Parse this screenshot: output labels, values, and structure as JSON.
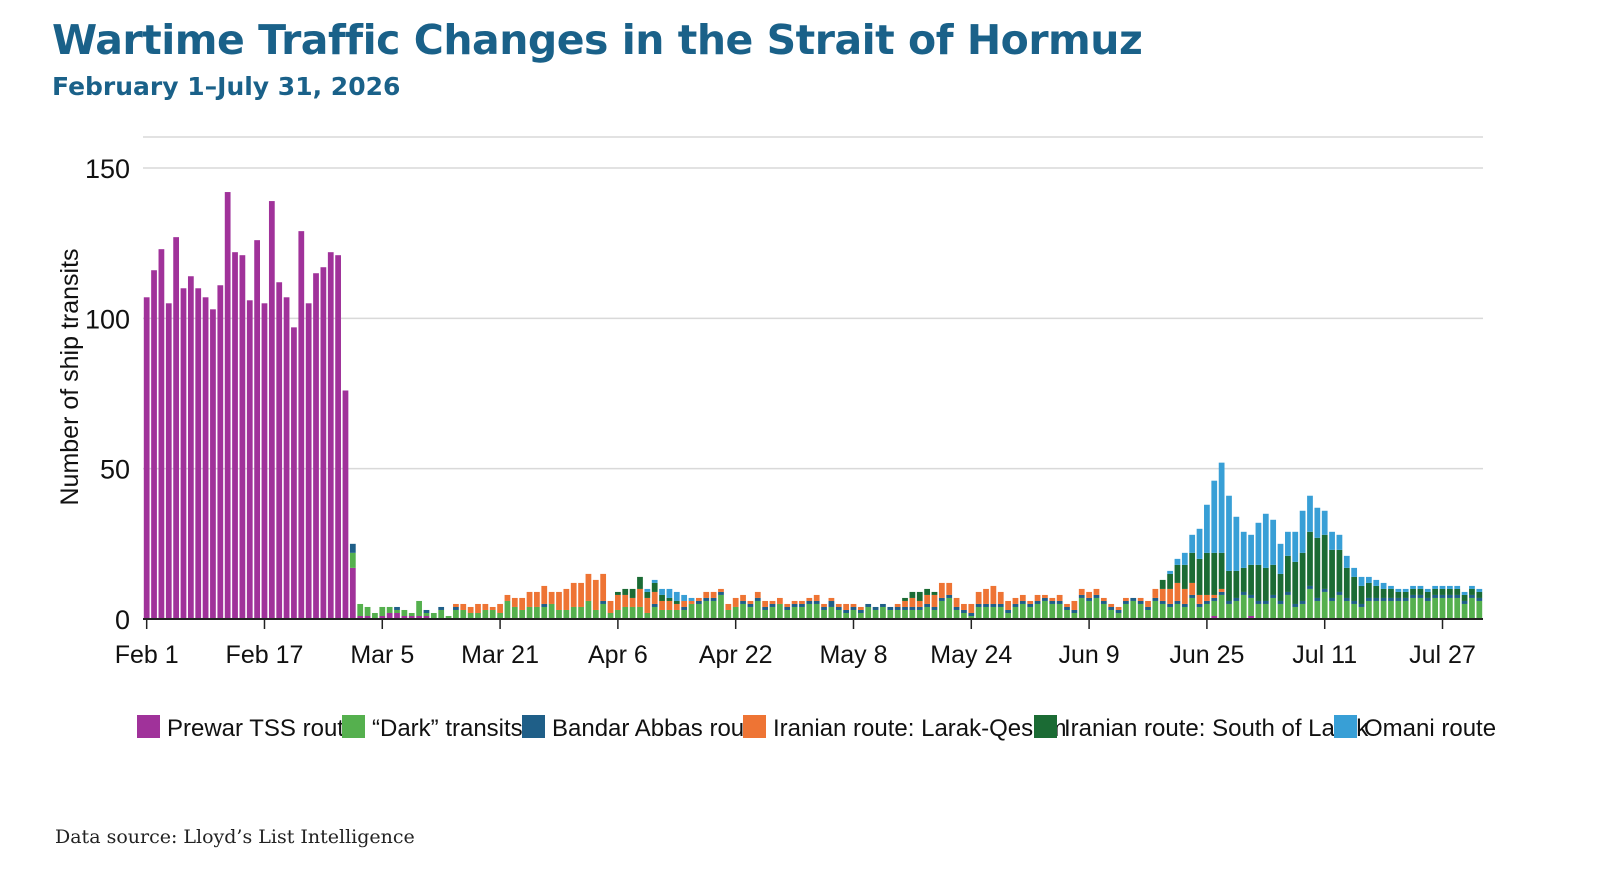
{
  "title": "Wartime Traffic Changes in the Strait of Hormuz",
  "subtitle": "February 1–July 31, 2026",
  "source": "Data source: Lloyd’s List Intelligence",
  "chart_data": {
    "type": "bar",
    "stacked": true,
    "ylabel": "Number of ship transits",
    "xlabel": "",
    "ylim": [
      0,
      150
    ],
    "yticks": [
      0,
      50,
      100,
      150
    ],
    "grid": true,
    "legend_position": "bottom",
    "start_date": "2026-02-01",
    "xtick_labels": [
      "Feb 1",
      "Feb 17",
      "Mar 5",
      "Mar 21",
      "Apr 6",
      "Apr 22",
      "May 8",
      "May 24",
      "Jun 9",
      "Jun 25",
      "Jul 11",
      "Jul 27"
    ],
    "series": [
      {
        "name": "Prewar TSS route",
        "color": "#a0329a",
        "values": [
          107,
          116,
          123,
          105,
          127,
          110,
          114,
          110,
          107,
          103,
          111,
          142,
          122,
          121,
          106,
          126,
          105,
          139,
          112,
          107,
          97,
          129,
          105,
          115,
          117,
          122,
          121,
          76,
          17,
          1,
          1,
          0,
          1,
          2,
          2,
          1,
          1,
          1,
          1,
          0,
          0,
          0,
          0,
          0,
          0,
          0,
          0,
          0,
          0,
          0,
          0,
          0,
          0,
          0,
          0,
          0,
          0,
          0,
          0,
          0,
          0,
          0,
          0,
          0,
          0,
          0,
          0,
          0,
          0,
          0,
          0,
          0,
          0,
          0,
          0,
          0,
          0,
          0,
          0,
          0,
          0,
          0,
          0,
          0,
          0,
          0,
          0,
          0,
          0,
          0,
          0,
          0,
          0,
          0,
          0,
          0,
          0,
          0,
          0,
          0,
          0,
          0,
          0,
          0,
          0,
          0,
          0,
          0,
          0,
          0,
          0,
          0,
          0,
          0,
          0,
          0,
          0,
          0,
          0,
          0,
          0,
          0,
          0,
          0,
          0,
          0,
          0,
          0,
          0,
          0,
          0,
          0,
          0,
          0,
          0,
          0,
          0,
          0,
          0,
          0,
          0,
          0,
          0,
          0,
          0,
          1,
          0,
          0,
          0,
          0,
          1,
          0,
          0,
          0,
          0,
          0,
          0,
          0,
          0,
          0,
          0,
          0,
          0,
          0,
          0,
          0,
          0,
          0,
          0,
          0,
          0,
          0,
          0,
          0,
          0,
          0,
          0,
          0,
          0,
          0,
          0,
          0
        ]
      },
      {
        "name": "“Dark” transits",
        "color": "#55b04e",
        "values": [
          0,
          0,
          0,
          0,
          0,
          0,
          0,
          0,
          0,
          0,
          0,
          0,
          0,
          0,
          0,
          0,
          0,
          0,
          0,
          0,
          0,
          0,
          0,
          0,
          0,
          0,
          0,
          0,
          5,
          4,
          3,
          2,
          3,
          2,
          1,
          2,
          1,
          5,
          1,
          2,
          3,
          1,
          3,
          3,
          2,
          2,
          3,
          3,
          2,
          6,
          4,
          3,
          4,
          4,
          4,
          5,
          3,
          3,
          4,
          4,
          6,
          3,
          5,
          2,
          3,
          4,
          4,
          4,
          2,
          4,
          3,
          3,
          3,
          3,
          5,
          5,
          6,
          6,
          8,
          3,
          4,
          5,
          4,
          6,
          3,
          4,
          5,
          3,
          4,
          4,
          5,
          5,
          3,
          4,
          3,
          2,
          3,
          2,
          4,
          3,
          4,
          3,
          3,
          3,
          3,
          3,
          4,
          3,
          6,
          7,
          3,
          2,
          1,
          4,
          4,
          4,
          4,
          2,
          4,
          5,
          4,
          5,
          6,
          5,
          5,
          3,
          2,
          7,
          6,
          7,
          5,
          3,
          2,
          5,
          6,
          5,
          3,
          6,
          5,
          4,
          5,
          4,
          7,
          4,
          5,
          5,
          8,
          5,
          6,
          8,
          6,
          5,
          5,
          7,
          5,
          8,
          4,
          5,
          10,
          6,
          9,
          6,
          8,
          6,
          5,
          4,
          6,
          6,
          6,
          6,
          6,
          6,
          7,
          7,
          6,
          7,
          7,
          7,
          7,
          5,
          7,
          6
        ]
      },
      {
        "name": "Bandar Abbas route",
        "color": "#1f5f88",
        "values": [
          0,
          0,
          0,
          0,
          0,
          0,
          0,
          0,
          0,
          0,
          0,
          0,
          0,
          0,
          0,
          0,
          0,
          0,
          0,
          0,
          0,
          0,
          0,
          0,
          0,
          0,
          0,
          0,
          3,
          0,
          0,
          0,
          0,
          0,
          1,
          0,
          0,
          0,
          1,
          0,
          1,
          0,
          1,
          0,
          0,
          0,
          0,
          0,
          0,
          0,
          0,
          0,
          0,
          0,
          1,
          0,
          0,
          0,
          0,
          0,
          0,
          0,
          1,
          0,
          0,
          0,
          0,
          0,
          0,
          1,
          0,
          0,
          0,
          1,
          0,
          1,
          1,
          1,
          1,
          0,
          0,
          1,
          1,
          1,
          1,
          1,
          0,
          1,
          1,
          1,
          1,
          1,
          1,
          2,
          1,
          1,
          1,
          1,
          1,
          1,
          1,
          1,
          1,
          1,
          1,
          1,
          1,
          1,
          1,
          1,
          1,
          1,
          1,
          1,
          1,
          1,
          1,
          1,
          1,
          1,
          1,
          1,
          1,
          1,
          1,
          1,
          1,
          1,
          1,
          1,
          1,
          1,
          1,
          1,
          1,
          1,
          1,
          1,
          1,
          1,
          1,
          1,
          1,
          1,
          1,
          1,
          1,
          1,
          1,
          1,
          1,
          1,
          1,
          1,
          1,
          1,
          1,
          1,
          1,
          1,
          1,
          1,
          1,
          1,
          1,
          1,
          1,
          1,
          1,
          1,
          1,
          1,
          1,
          1,
          1,
          1,
          1,
          1,
          1,
          1,
          1,
          1
        ]
      },
      {
        "name": "Iranian route: Larak-Qeshm",
        "color": "#ee7434",
        "values": [
          0,
          0,
          0,
          0,
          0,
          0,
          0,
          0,
          0,
          0,
          0,
          0,
          0,
          0,
          0,
          0,
          0,
          0,
          0,
          0,
          0,
          0,
          0,
          0,
          0,
          0,
          0,
          0,
          0,
          0,
          0,
          0,
          0,
          0,
          0,
          0,
          0,
          0,
          0,
          0,
          0,
          0,
          1,
          2,
          2,
          3,
          2,
          1,
          3,
          2,
          3,
          4,
          5,
          5,
          6,
          4,
          6,
          7,
          8,
          8,
          9,
          10,
          9,
          4,
          5,
          4,
          3,
          6,
          5,
          4,
          3,
          3,
          2,
          2,
          1,
          1,
          2,
          2,
          1,
          2,
          3,
          2,
          1,
          2,
          2,
          1,
          2,
          1,
          1,
          1,
          1,
          2,
          1,
          1,
          1,
          2,
          1,
          1,
          0,
          0,
          0,
          0,
          1,
          2,
          3,
          2,
          3,
          4,
          5,
          4,
          3,
          2,
          3,
          4,
          5,
          6,
          4,
          3,
          2,
          2,
          1,
          2,
          1,
          1,
          2,
          1,
          3,
          2,
          2,
          2,
          1,
          1,
          1,
          1,
          0,
          1,
          2,
          3,
          4,
          5,
          6,
          5,
          4,
          3,
          2,
          1,
          1,
          0,
          0,
          0,
          0,
          0,
          0,
          0,
          0,
          0,
          0,
          0,
          0,
          0,
          0,
          0,
          0,
          0,
          0,
          0,
          0,
          0,
          0,
          0,
          0,
          0,
          0,
          0,
          0,
          0,
          0,
          0,
          0,
          0,
          0,
          0
        ]
      },
      {
        "name": "Iranian route: South of Larak",
        "color": "#1b6b34",
        "values": [
          0,
          0,
          0,
          0,
          0,
          0,
          0,
          0,
          0,
          0,
          0,
          0,
          0,
          0,
          0,
          0,
          0,
          0,
          0,
          0,
          0,
          0,
          0,
          0,
          0,
          0,
          0,
          0,
          0,
          0,
          0,
          0,
          0,
          0,
          0,
          0,
          0,
          0,
          0,
          0,
          0,
          0,
          0,
          0,
          0,
          0,
          0,
          0,
          0,
          0,
          0,
          0,
          0,
          0,
          0,
          0,
          0,
          0,
          0,
          0,
          0,
          0,
          0,
          0,
          1,
          2,
          3,
          4,
          2,
          3,
          2,
          1,
          1,
          0,
          0,
          0,
          0,
          0,
          0,
          0,
          0,
          0,
          0,
          0,
          0,
          0,
          0,
          0,
          0,
          0,
          0,
          0,
          0,
          0,
          0,
          0,
          0,
          0,
          0,
          0,
          0,
          0,
          0,
          1,
          2,
          3,
          2,
          1,
          0,
          0,
          0,
          0,
          0,
          0,
          0,
          0,
          0,
          0,
          0,
          0,
          0,
          0,
          0,
          0,
          0,
          0,
          0,
          0,
          0,
          0,
          0,
          0,
          0,
          0,
          0,
          0,
          0,
          0,
          3,
          5,
          6,
          8,
          10,
          12,
          14,
          14,
          12,
          10,
          9,
          8,
          10,
          12,
          11,
          10,
          9,
          12,
          14,
          16,
          18,
          20,
          18,
          16,
          14,
          10,
          8,
          6,
          5,
          4,
          3,
          3,
          2,
          2,
          2,
          2,
          2,
          2,
          2,
          2,
          2,
          2,
          2,
          2,
          2,
          2,
          2,
          1
        ]
      },
      {
        "name": "Omani route",
        "color": "#389fd6",
        "values": [
          0,
          0,
          0,
          0,
          0,
          0,
          0,
          0,
          0,
          0,
          0,
          0,
          0,
          0,
          0,
          0,
          0,
          0,
          0,
          0,
          0,
          0,
          0,
          0,
          0,
          0,
          0,
          0,
          0,
          0,
          0,
          0,
          0,
          0,
          0,
          0,
          0,
          0,
          0,
          0,
          0,
          0,
          0,
          0,
          0,
          0,
          0,
          0,
          0,
          0,
          0,
          0,
          0,
          0,
          0,
          0,
          0,
          0,
          0,
          0,
          0,
          0,
          0,
          0,
          0,
          0,
          0,
          0,
          1,
          1,
          2,
          3,
          3,
          2,
          1,
          0,
          0,
          0,
          0,
          0,
          0,
          0,
          0,
          0,
          0,
          0,
          0,
          0,
          0,
          0,
          0,
          0,
          0,
          0,
          0,
          0,
          0,
          0,
          0,
          0,
          0,
          0,
          0,
          0,
          0,
          0,
          0,
          0,
          0,
          0,
          0,
          0,
          0,
          0,
          0,
          0,
          0,
          0,
          0,
          0,
          0,
          0,
          0,
          0,
          0,
          0,
          0,
          0,
          0,
          0,
          0,
          0,
          0,
          0,
          0,
          0,
          0,
          0,
          0,
          1,
          2,
          4,
          6,
          10,
          16,
          24,
          30,
          25,
          18,
          12,
          10,
          14,
          18,
          15,
          10,
          8,
          10,
          14,
          12,
          10,
          8,
          6,
          5,
          4,
          3,
          3,
          2,
          2,
          2,
          1,
          1,
          1,
          1,
          1,
          1,
          1,
          1,
          1,
          1,
          1,
          1,
          1
        ]
      }
    ]
  }
}
